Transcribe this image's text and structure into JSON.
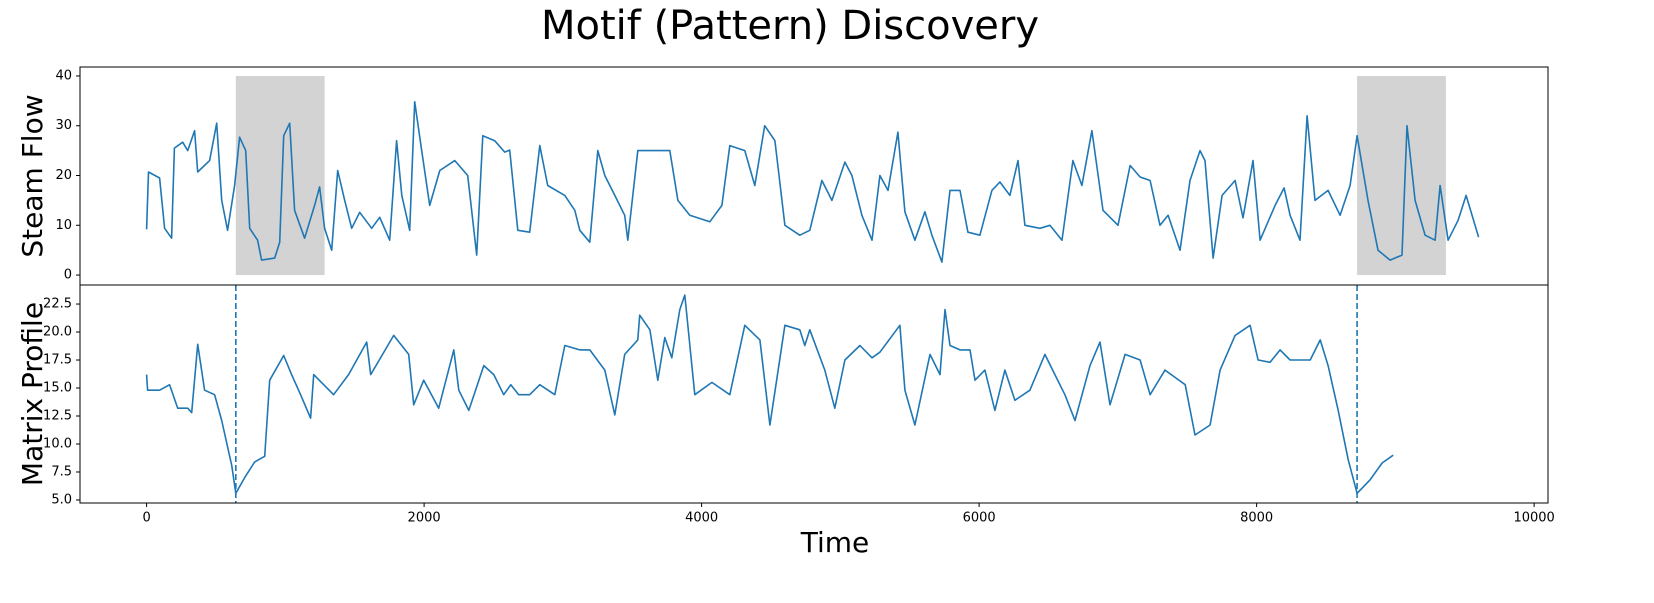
{
  "chart_data": [
    {
      "type": "line",
      "title": "Motif (Pattern) Discovery",
      "ylabel": "Steam Flow",
      "color": "#1f77b4",
      "xlim": [
        -480,
        10100
      ],
      "ylim": [
        -2,
        41.8
      ],
      "yticks": [
        0,
        10,
        20,
        30,
        40
      ],
      "spans": [
        [
          643,
          1283
        ],
        [
          8724,
          9364
        ]
      ],
      "span_color": "#d3d3d3",
      "x": [
        0,
        14,
        94,
        130,
        180,
        200,
        260,
        296,
        346,
        368,
        454,
        505,
        541,
        584,
        634,
        670,
        714,
        743,
        800,
        829,
        923,
        959,
        988,
        1031,
        1067,
        1139,
        1211,
        1247,
        1283,
        1334,
        1377,
        1428,
        1478,
        1536,
        1622,
        1680,
        1752,
        1802,
        1839,
        1896,
        1932,
        1983,
        2040,
        2113,
        2221,
        2314,
        2379,
        2423,
        2509,
        2581,
        2617,
        2675,
        2761,
        2834,
        2891,
        3014,
        3086,
        3122,
        3194,
        3252,
        3302,
        3374,
        3446,
        3468,
        3540,
        3699,
        3771,
        3829,
        3915,
        4059,
        4146,
        4203,
        4311,
        4383,
        4455,
        4528,
        4600,
        4708,
        4780,
        4867,
        4939,
        5033,
        5083,
        5155,
        5228,
        5285,
        5343,
        5415,
        5465,
        5537,
        5609,
        5660,
        5732,
        5790,
        5862,
        5919,
        6006,
        6092,
        6150,
        6222,
        6280,
        6330,
        6438,
        6510,
        6597,
        6676,
        6741,
        6813,
        6893,
        7001,
        7088,
        7160,
        7232,
        7304,
        7362,
        7448,
        7520,
        7592,
        7628,
        7686,
        7751,
        7845,
        7902,
        7974,
        8025,
        8133,
        8198,
        8241,
        8313,
        8364,
        8421,
        8515,
        8602,
        8674,
        8724,
        8803,
        8875,
        8962,
        9048,
        9084,
        9142,
        9214,
        9286,
        9322,
        9380,
        9452,
        9510,
        9600
      ],
      "values": [
        9.2,
        20.7,
        19.5,
        9.4,
        7.4,
        25.5,
        26.7,
        25,
        29,
        20.7,
        23,
        30.5,
        15,
        9,
        18,
        27.7,
        25,
        9.4,
        7,
        3,
        3.4,
        6.6,
        28,
        30.5,
        13,
        7.4,
        14,
        17.7,
        9.4,
        5,
        21,
        15,
        9.4,
        12.6,
        9.4,
        11.6,
        7,
        27,
        16,
        9,
        34.8,
        25,
        14,
        21,
        23,
        20,
        4,
        28,
        27,
        24.7,
        25.1,
        9,
        8.6,
        26,
        18,
        16,
        13,
        9,
        6.6,
        25,
        20,
        16,
        12,
        7,
        25,
        25,
        25,
        15,
        12,
        10.7,
        14,
        26,
        25,
        18,
        30,
        27,
        10,
        8,
        9,
        19,
        15,
        22.7,
        20,
        12,
        7,
        20,
        17,
        28.7,
        12.7,
        7,
        12.7,
        8,
        2.6,
        17,
        17,
        8.6,
        8,
        17,
        18.7,
        16,
        23,
        10,
        9.4,
        10,
        7,
        23,
        18,
        29,
        13,
        10,
        22,
        19.7,
        19,
        10,
        12,
        5,
        19,
        25,
        23,
        3.4,
        16,
        19,
        11.5,
        23,
        7,
        14,
        17.5,
        12,
        7,
        32,
        15,
        17,
        12,
        18,
        28,
        15,
        5,
        3,
        4,
        30,
        15,
        8,
        7,
        18,
        7,
        11,
        16,
        7.6
      ]
    },
    {
      "type": "line",
      "ylabel": "Matrix Profile",
      "xlabel": "Time",
      "color": "#1f77b4",
      "xlim": [
        -480,
        10100
      ],
      "ylim": [
        4.73,
        24.2
      ],
      "xticks": [
        0,
        2000,
        4000,
        6000,
        8000,
        10000
      ],
      "yticks": [
        {
          "value": 5,
          "label": "5.0"
        },
        7.5,
        {
          "value": 10,
          "label": "10.0"
        },
        12.5,
        {
          "value": 15,
          "label": "15.0"
        },
        17.5,
        {
          "value": 20,
          "label": "20.0"
        },
        22.5
      ],
      "vlines": [
        643,
        8724
      ],
      "x": [
        0,
        7,
        94,
        166,
        224,
        296,
        325,
        368,
        418,
        490,
        541,
        613,
        643,
        707,
        779,
        851,
        887,
        988,
        1045,
        1110,
        1182,
        1204,
        1348,
        1456,
        1586,
        1615,
        1781,
        1889,
        1925,
        1997,
        2105,
        2214,
        2250,
        2322,
        2430,
        2502,
        2574,
        2625,
        2682,
        2761,
        2834,
        2942,
        3014,
        3122,
        3194,
        3302,
        3374,
        3446,
        3540,
        3554,
        3627,
        3684,
        3735,
        3785,
        3843,
        3879,
        3951,
        4074,
        4203,
        4311,
        4420,
        4492,
        4600,
        4708,
        4744,
        4780,
        4888,
        4960,
        5033,
        5141,
        5228,
        5285,
        5429,
        5465,
        5537,
        5646,
        5718,
        5754,
        5790,
        5862,
        5934,
        5970,
        6042,
        6114,
        6186,
        6258,
        6366,
        6474,
        6546,
        6618,
        6691,
        6799,
        6871,
        6943,
        7052,
        7160,
        7232,
        7340,
        7485,
        7556,
        7665,
        7737,
        7845,
        7953,
        8011,
        8097,
        8169,
        8241,
        8386,
        8458,
        8515,
        8588,
        8660,
        8724,
        8818,
        8904,
        8984
      ],
      "values": [
        16.2,
        14.8,
        14.8,
        15.3,
        13.2,
        13.2,
        12.8,
        18.9,
        14.8,
        14.4,
        12.1,
        8.1,
        5.6,
        7,
        8.4,
        8.9,
        15.7,
        17.9,
        16.2,
        14.4,
        12.3,
        16.2,
        14.4,
        16.2,
        19.1,
        16.2,
        19.7,
        18,
        13.5,
        15.7,
        13.2,
        18.4,
        14.8,
        13,
        17,
        16.2,
        14.4,
        15.3,
        14.4,
        14.4,
        15.3,
        14.4,
        18.8,
        18.4,
        18.4,
        16.6,
        12.6,
        18,
        19.3,
        21.5,
        20.2,
        15.7,
        19.5,
        17.7,
        22,
        23.3,
        14.4,
        15.5,
        14.4,
        20.6,
        19.3,
        11.7,
        20.6,
        20.2,
        18.8,
        20.2,
        16.6,
        13.2,
        17.5,
        18.8,
        17.7,
        18.2,
        20.6,
        14.8,
        11.7,
        18,
        16.2,
        22,
        18.8,
        18.4,
        18.4,
        15.7,
        16.6,
        13,
        16.6,
        13.9,
        14.8,
        18,
        16.2,
        14.4,
        12.1,
        17,
        19.1,
        13.5,
        18,
        17.5,
        14.4,
        16.6,
        15.3,
        10.8,
        11.7,
        16.6,
        19.7,
        20.6,
        17.5,
        17.3,
        18.4,
        17.5,
        17.5,
        19.3,
        17,
        13,
        8.6,
        5.6,
        6.8,
        8.3,
        9
      ]
    }
  ]
}
